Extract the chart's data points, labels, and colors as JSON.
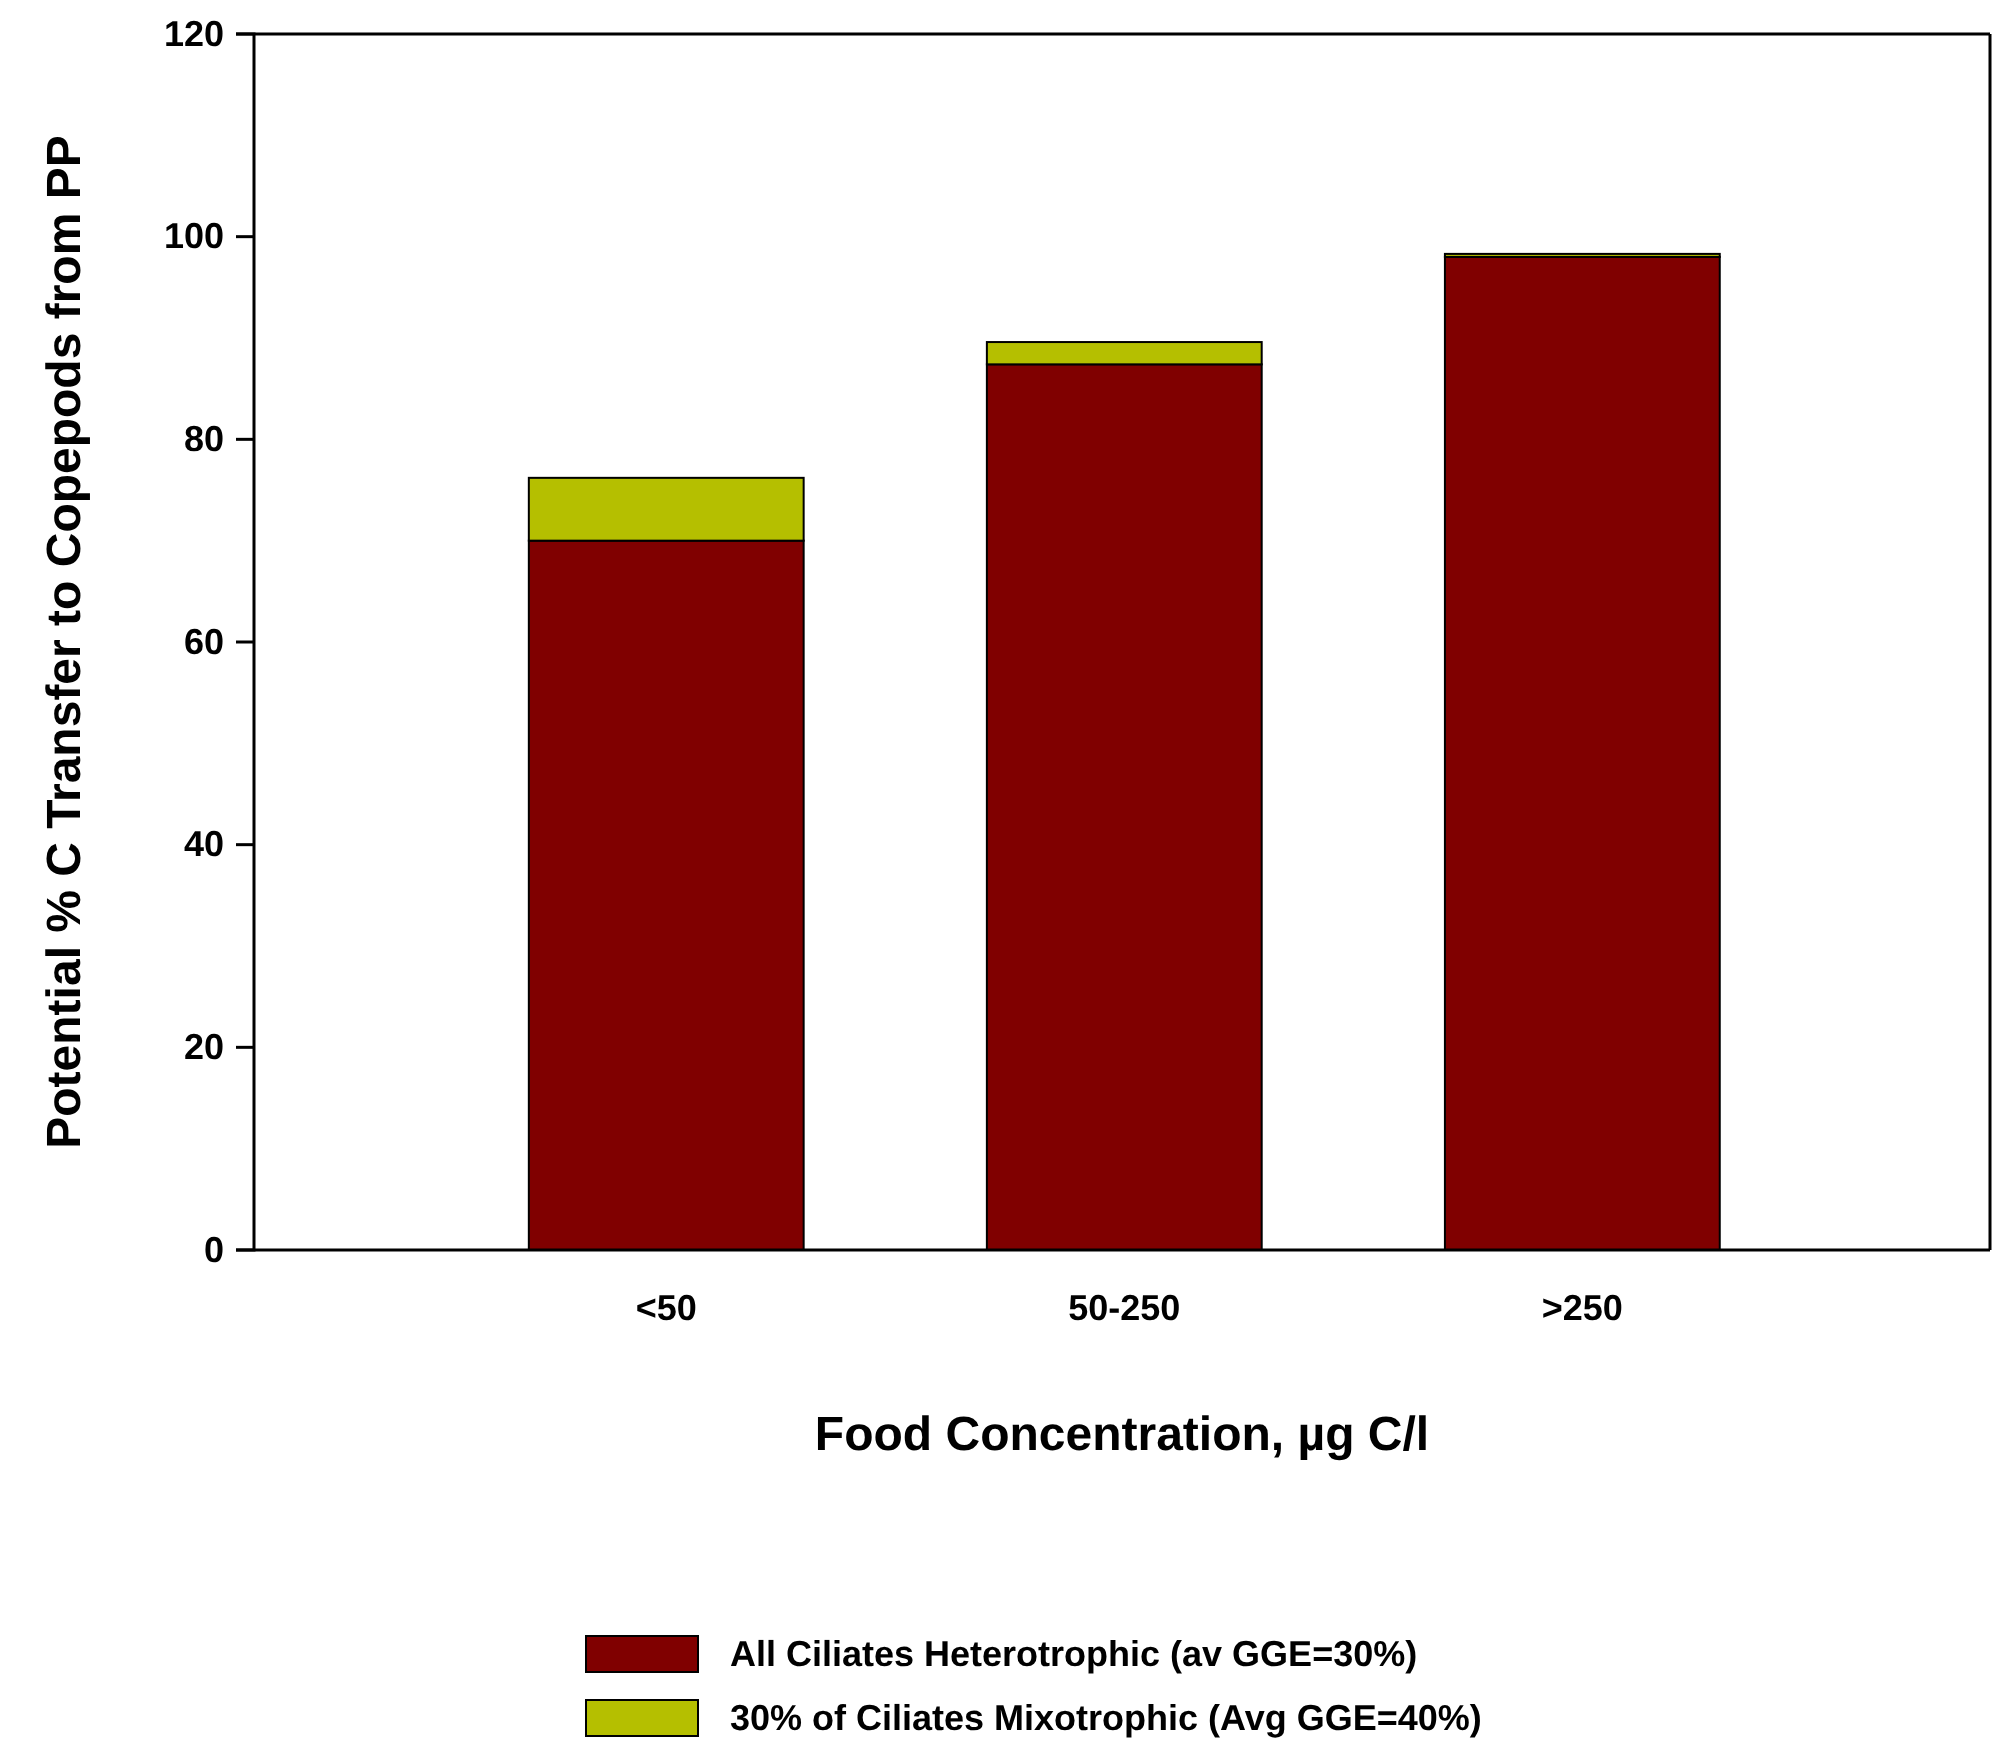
{
  "chart_data": {
    "type": "bar",
    "stacked": true,
    "categories": [
      "<50",
      "50-250",
      ">250"
    ],
    "xlabel": "Food Concentration, µg C/l",
    "ylabel": "Potential % C Transfer to Copepods from PP",
    "series": [
      {
        "name": "All Ciliates Heterotrophic (av GGE=30%)",
        "color": "#800000",
        "values": [
          70,
          87.4,
          98
        ]
      },
      {
        "name": "30% of Ciliates Mixotrophic (Avg GGE=40%)",
        "color": "#b5bf00",
        "values": [
          6.2,
          2.2,
          0.3
        ]
      }
    ],
    "ylim": [
      0,
      120
    ],
    "yticks": [
      0,
      20,
      40,
      60,
      80,
      100,
      120
    ],
    "grid": false,
    "legend": "bottom"
  }
}
